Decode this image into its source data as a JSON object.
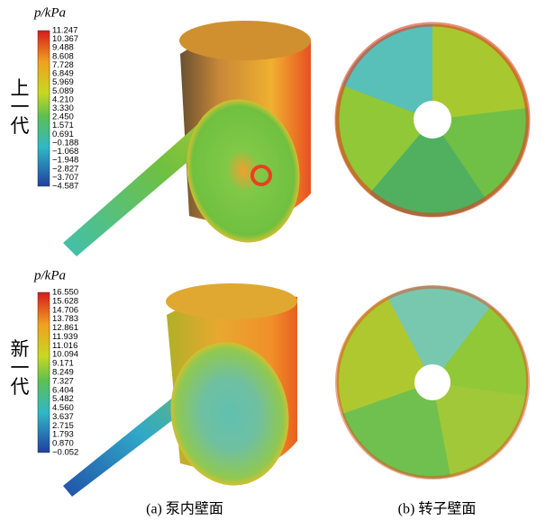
{
  "panels": [
    {
      "unit_title": "p/kPa",
      "row_label": "上一代",
      "scale_labels": [
        "11.247",
        "10.367",
        "9.488",
        "8.608",
        "7.728",
        "6.849",
        "5.969",
        "5.089",
        "4.210",
        "3.330",
        "2.450",
        "1.571",
        "0.691",
        "−0.188",
        "−1.068",
        "−1.948",
        "−2.827",
        "−3.707",
        "−4.587"
      ]
    },
    {
      "unit_title": "p/kPa",
      "row_label": "新一代",
      "scale_labels": [
        "16.550",
        "15.628",
        "14.706",
        "13.783",
        "12.861",
        "11.939",
        "11.016",
        "10.094",
        "9.171",
        "8.249",
        "7.327",
        "6.404",
        "5.482",
        "4.560",
        "3.637",
        "2.715",
        "1.793",
        "0.870",
        "−0.052"
      ]
    }
  ],
  "captions": [
    "(a) 泵内壁面",
    "(b) 转子壁面"
  ]
}
